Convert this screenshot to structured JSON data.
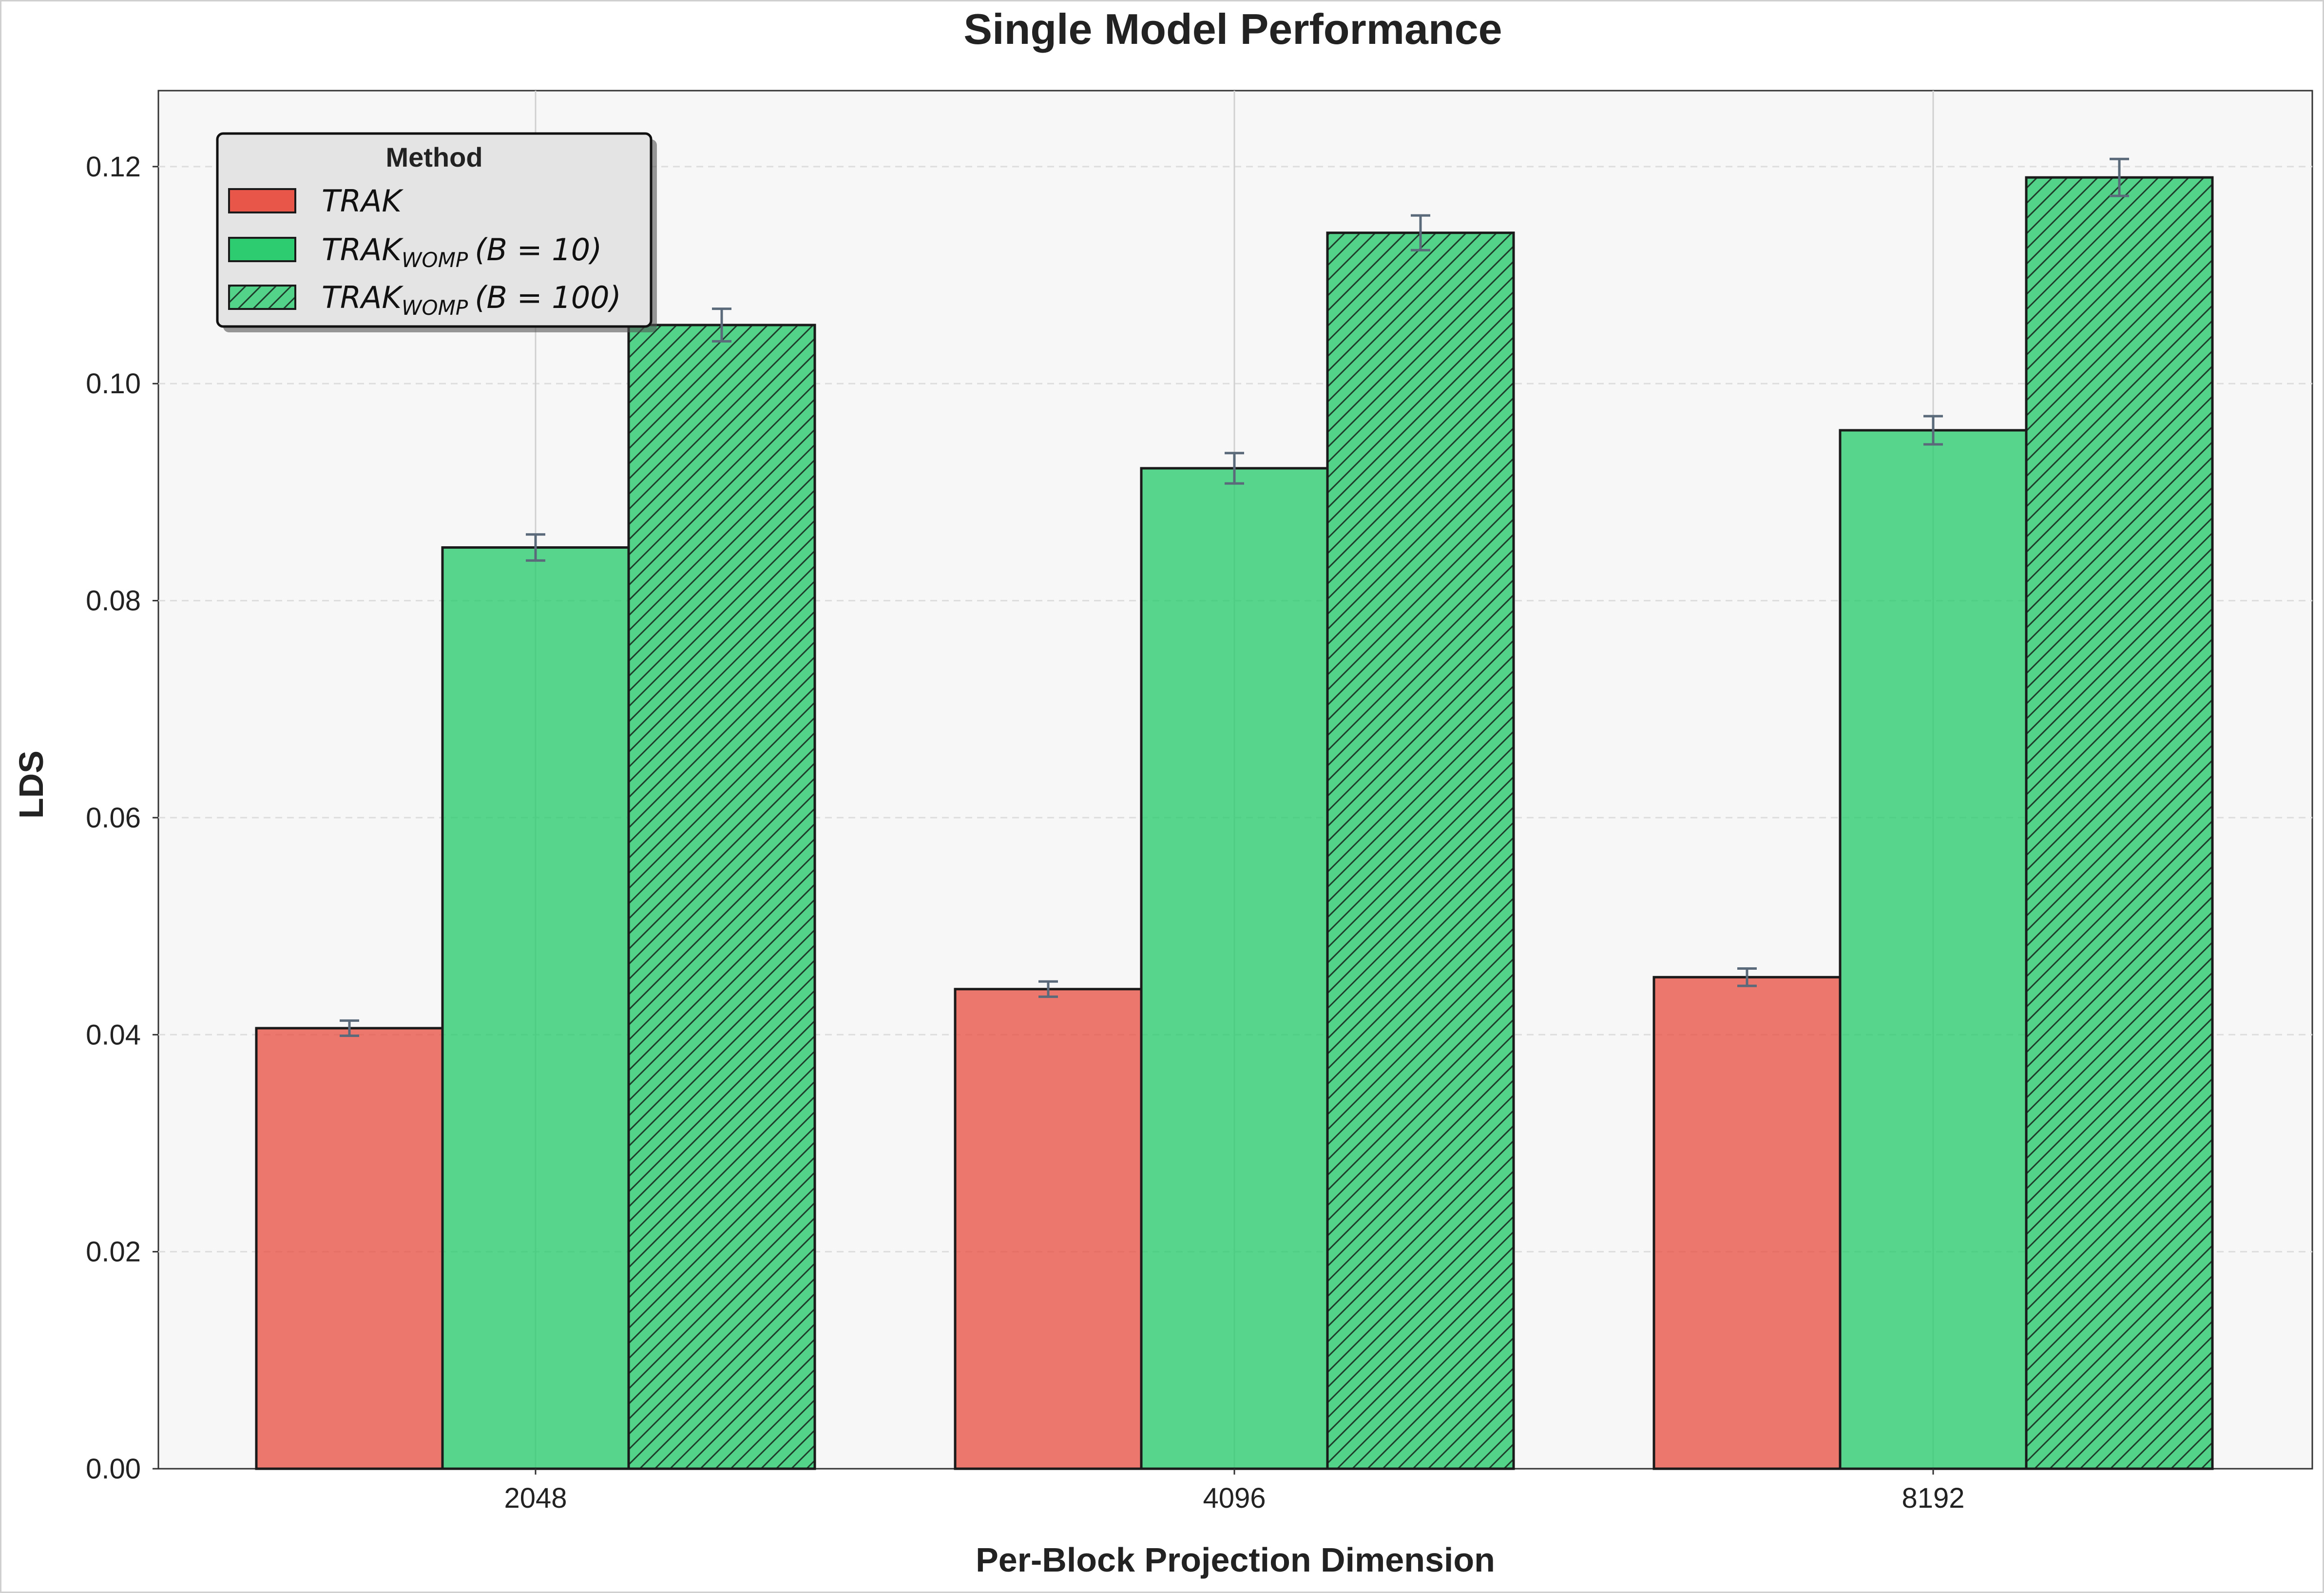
{
  "chart_data": {
    "type": "bar",
    "title": "Single Model Performance",
    "xlabel": "Per-Block Projection Dimension",
    "ylabel": "LDS",
    "categories": [
      "2048",
      "4096",
      "8192"
    ],
    "ylim": [
      0,
      0.127
    ],
    "yticks": [
      0.0,
      0.02,
      0.04,
      0.06,
      0.08,
      0.1,
      0.12
    ],
    "ytick_labels": [
      "0.00",
      "0.02",
      "0.04",
      "0.06",
      "0.08",
      "0.10",
      "0.12"
    ],
    "grid": "y dashed, x at categories",
    "legend": {
      "title": "Method",
      "placement": "top-left"
    },
    "series": [
      {
        "name": "TRAK",
        "legend_parts": [
          "TRAK"
        ],
        "color": "#E8564A",
        "hatch": false,
        "values": [
          0.0406,
          0.0442,
          0.0453
        ],
        "errors": [
          0.0007,
          0.0007,
          0.0008
        ]
      },
      {
        "name": "TRAK_WOMP (B = 10)",
        "legend_parts": [
          "TRAK",
          "WOMP",
          "(B = 10)"
        ],
        "color": "#2ECC71",
        "hatch": false,
        "values": [
          0.0849,
          0.0922,
          0.0957
        ],
        "errors": [
          0.0012,
          0.0014,
          0.0013
        ]
      },
      {
        "name": "TRAK_WOMP (B = 100)",
        "legend_parts": [
          "TRAK",
          "WOMP",
          "(B = 100)"
        ],
        "color": "#2ECC71",
        "hatch": true,
        "values": [
          0.1054,
          0.1139,
          0.119
        ],
        "errors": [
          0.0015,
          0.0016,
          0.0017
        ]
      }
    ]
  }
}
